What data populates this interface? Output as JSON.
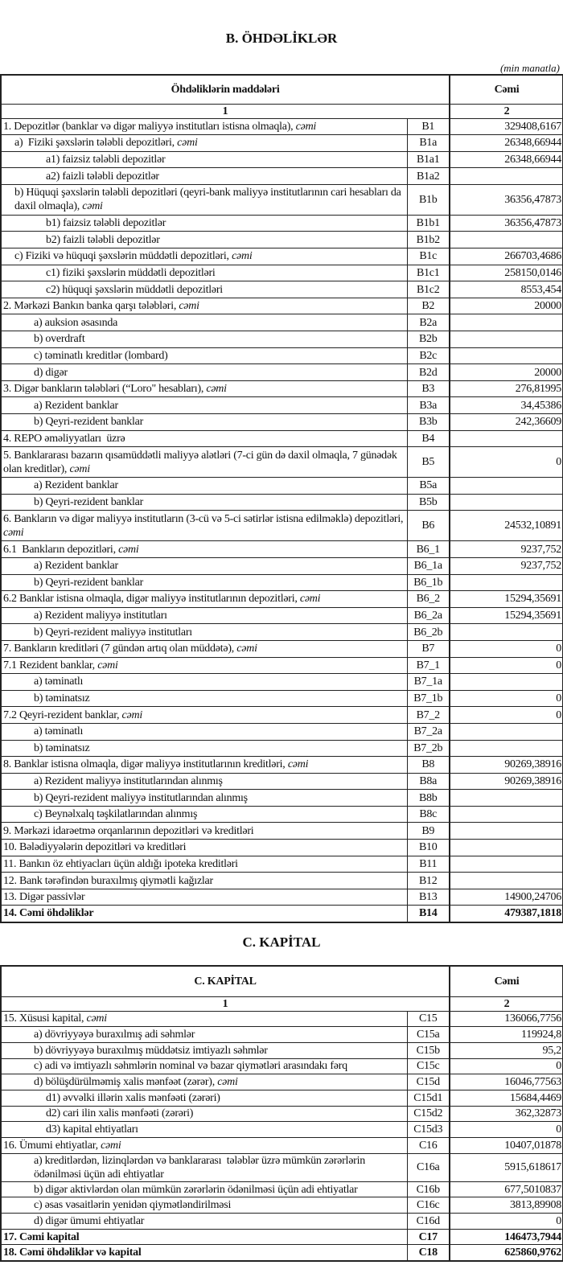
{
  "section_b": {
    "title": "B. ÖHDƏLİKLƏR",
    "unit": "(min manatla)",
    "header_col1": "Öhdəliklərin maddələri",
    "header_col2": "Cəmi",
    "num_col1": "1",
    "num_col2": "2",
    "rows": [
      {
        "label": "1. Depozitlər (banklar və digər maliyyə institutları istisna olmaqla), ",
        "em": "cəmi",
        "code": "B1",
        "value": "329408,6167",
        "level": 0
      },
      {
        "label": "a)  Fiziki şəxslərin tələbli depozitləri, ",
        "em": "cəmi",
        "code": "B1a",
        "value": "26348,66944",
        "level": 1
      },
      {
        "label": "a1) faizsiz tələbli depozitlər",
        "code": "B1a1",
        "value": "26348,66944",
        "level": 4
      },
      {
        "label": "a2) faizli tələbli depozitlər",
        "code": "B1a2",
        "value": "",
        "level": 4
      },
      {
        "label": "b) Hüquqi şəxslərin tələbli depozitləri (qeyri-bank maliyyə institutlarının cari hesabları da daxil olmaqla), ",
        "em": "cəmi",
        "code": "B1b",
        "value": "36356,47873",
        "level": 1,
        "double": true
      },
      {
        "label": "b1) faizsiz tələbli depozitlər",
        "code": "B1b1",
        "value": "36356,47873",
        "level": 4
      },
      {
        "label": "b2) faizli tələbli depozitlər",
        "code": "B1b2",
        "value": "",
        "level": 4
      },
      {
        "label": "c) Fiziki və hüquqi şəxslərin müddətli depozitləri, ",
        "em": "cəmi",
        "code": "B1c",
        "value": "266703,4686",
        "level": 1
      },
      {
        "label": "c1) fiziki şəxslərin müddətli depozitləri",
        "code": "B1c1",
        "value": "258150,0146",
        "level": 4
      },
      {
        "label": "c2) hüquqi şəxslərin müddətli depozitləri",
        "code": "B1c2",
        "value": "8553,454",
        "level": 4
      },
      {
        "label": "2. Mərkəzi Bankın banka qarşı tələbləri, ",
        "em": "cəmi",
        "code": "B2",
        "value": "20000",
        "level": 0
      },
      {
        "label": "a) auksion əsasında",
        "code": "B2a",
        "value": "",
        "level": 3
      },
      {
        "label": "b) overdraft",
        "code": "B2b",
        "value": "",
        "level": 3
      },
      {
        "label": "c) təminatlı kreditlər (lombard)",
        "code": "B2c",
        "value": "",
        "level": 3
      },
      {
        "label": "d) digər",
        "code": "B2d",
        "value": "20000",
        "level": 3
      },
      {
        "label": "3. Digər bankların tələbləri (“Loro\" hesabları), ",
        "em": "cəmi",
        "code": "B3",
        "value": "276,81995",
        "level": 0
      },
      {
        "label": "a) Rezident banklar",
        "code": "B3a",
        "value": "34,45386",
        "level": 3
      },
      {
        "label": "b) Qeyri-rezident banklar",
        "code": "B3b",
        "value": "242,36609",
        "level": 3
      },
      {
        "label": "4. REPO əməliyyatları  üzrə",
        "code": "B4",
        "value": "",
        "level": 0
      },
      {
        "label": "5. Banklararası bazarın qısamüddətli maliyyə alətləri (7-ci gün də daxil olmaqla, 7 günədək olan kreditlər), ",
        "em": "cəmi",
        "code": "B5",
        "value": "0",
        "level": 0,
        "double": true
      },
      {
        "label": "a) Rezident banklar",
        "code": "B5a",
        "value": "",
        "level": 3
      },
      {
        "label": "b) Qeyri-rezident banklar",
        "code": "B5b",
        "value": "",
        "level": 3
      },
      {
        "label": "6. Bankların və digər maliyyə institutların (3-cü və 5-ci sətirlər istisna edilməklə) depozitləri, ",
        "em": "cəmi",
        "code": "B6",
        "value": "24532,10891",
        "level": 0,
        "double": true
      },
      {
        "label": "6.1  Bankların depozitləri, ",
        "em": "cəmi",
        "code": "B6_1",
        "value": "9237,752",
        "level": 0
      },
      {
        "label": "a) Rezident banklar",
        "code": "B6_1a",
        "value": "9237,752",
        "level": 3
      },
      {
        "label": "b) Qeyri-rezident banklar",
        "code": "B6_1b",
        "value": "",
        "level": 3
      },
      {
        "label": "6.2 Banklar istisna olmaqla, digər maliyyə institutlarının depozitləri, ",
        "em": "cəmi",
        "code": "B6_2",
        "value": "15294,35691",
        "level": 0
      },
      {
        "label": "a) Rezident maliyyə institutları",
        "code": "B6_2a",
        "value": "15294,35691",
        "level": 3
      },
      {
        "label": "b) Qeyri-rezident maliyyə institutları",
        "code": "B6_2b",
        "value": "",
        "level": 3
      },
      {
        "label": "7. Bankların kreditləri (7 gündən artıq olan müddətə), ",
        "em": "cəmi",
        "code": "B7",
        "value": "0",
        "level": 0
      },
      {
        "label": "7.1 Rezident banklar, ",
        "em": "cəmi",
        "code": "B7_1",
        "value": "0",
        "level": 0
      },
      {
        "label": "a) təminatlı",
        "code": "B7_1a",
        "value": "",
        "level": 3
      },
      {
        "label": "b) təminatsız",
        "code": "B7_1b",
        "value": "0",
        "level": 3
      },
      {
        "label": "7.2 Qeyri-rezident banklar, ",
        "em": "cəmi",
        "code": "B7_2",
        "value": "0",
        "level": 0
      },
      {
        "label": "a) təminatlı",
        "code": "B7_2a",
        "value": "",
        "level": 3
      },
      {
        "label": "b) təminatsız",
        "code": "B7_2b",
        "value": "",
        "level": 3
      },
      {
        "label": "8. Banklar istisna olmaqla, digər maliyyə institutlarının kreditləri, ",
        "em": "cəmi",
        "code": "B8",
        "value": "90269,38916",
        "level": 0
      },
      {
        "label": "a) Rezident maliyyə institutlarından alınmış",
        "code": "B8a",
        "value": "90269,38916",
        "level": 3
      },
      {
        "label": "b) Qeyri-rezident maliyyə institutlarından alınmış",
        "code": "B8b",
        "value": "",
        "level": 3
      },
      {
        "label": "c) Beynəlxalq təşkilatlarından alınmış",
        "code": "B8c",
        "value": "",
        "level": 3
      },
      {
        "label": "9. Mərkəzi idarəetmə orqanlarının depozitləri və kreditləri",
        "code": "B9",
        "value": "",
        "level": 0
      },
      {
        "label": "10. Bələdiyyələrin depozitləri və kreditləri",
        "code": "B10",
        "value": "",
        "level": 0
      },
      {
        "label": "11. Bankın öz ehtiyacları üçün aldığı ipoteka kreditləri",
        "code": "B11",
        "value": "",
        "level": 0
      },
      {
        "label": "12. Bank tərəfindən buraxılmış qiymətli kağızlar",
        "code": "B12",
        "value": "",
        "level": 0
      },
      {
        "label": "13. Digər passivlər",
        "code": "B13",
        "value": "14900,24706",
        "level": 0
      },
      {
        "label": "14. Cəmi öhdəliklər",
        "code": "B14",
        "value": "479387,1818",
        "level": 0,
        "bold": true
      }
    ]
  },
  "section_c": {
    "title": "C. KAPİTAL",
    "header_col1": "C. KAPİTAL",
    "header_col2": "Cəmi",
    "num_col1": "1",
    "num_col2": "2",
    "rows": [
      {
        "label": "15. Xüsusi kapital, ",
        "em": "cəmi",
        "code": "C15",
        "value": "136066,7756",
        "level": 0
      },
      {
        "label": "a) dövriyyəyə buraxılmış adi səhmlər",
        "code": "C15a",
        "value": "119924,8",
        "level": 3
      },
      {
        "label": "b) dövriyyəyə buraxılmış müddətsiz imtiyazlı səhmlər",
        "code": "C15b",
        "value": "95,2",
        "level": 3
      },
      {
        "label": "c) adi və imtiyazlı səhmlərin nominal və bazar qiymətləri arasındakı fərq",
        "code": "C15c",
        "value": "0",
        "level": 3
      },
      {
        "label": "d) bölüşdürülməmiş xalis mənfəət (zərər), ",
        "em": "cəmi",
        "code": "C15d",
        "value": "16046,77563",
        "level": 3
      },
      {
        "label": "d1) əvvəlki illərin xalis mənfəəti (zərəri)",
        "code": "C15d1",
        "value": "15684,4469",
        "level": 4
      },
      {
        "label": "d2) cari ilin xalis mənfəəti (zərəri)",
        "code": "C15d2",
        "value": "362,32873",
        "level": 4
      },
      {
        "label": "d3) kapital ehtiyatları",
        "code": "C15d3",
        "value": "0",
        "level": 4
      },
      {
        "label": "16. Ümumi ehtiyatlar, ",
        "em": "cəmi",
        "code": "C16",
        "value": "10407,01878",
        "level": 0
      },
      {
        "label": "a) kreditlərdən, lizinqlərdən və banklararası  tələblər üzrə mümkün zərərlərin ödənilməsi üçün adi ehtiyatlar",
        "code": "C16a",
        "value": "5915,618617",
        "level": 3,
        "double": true
      },
      {
        "label": "b) digər aktivlərdən olan mümkün zərərlərin ödənilməsi üçün adi ehtiyatlar",
        "code": "C16b",
        "value": "677,5010837",
        "level": 3
      },
      {
        "label": "c) əsas vəsaitlərin yenidən qiymətləndirilməsi",
        "code": "C16c",
        "value": "3813,89908",
        "level": 3
      },
      {
        "label": "d) digər ümumi ehtiyatlar",
        "code": "C16d",
        "value": "0",
        "level": 3
      },
      {
        "label": "17. Cəmi kapital",
        "code": "C17",
        "value": "146473,7944",
        "level": 0,
        "bold": true
      },
      {
        "label": "18. Cəmi öhdəliklər və kapital",
        "code": "C18",
        "value": "625860,9762",
        "level": 0,
        "bold": true
      }
    ]
  }
}
